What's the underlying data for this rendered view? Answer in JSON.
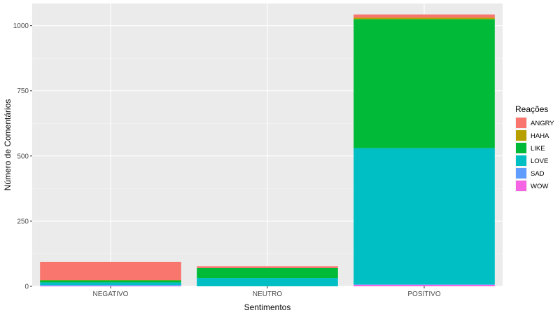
{
  "chart_data": {
    "type": "bar",
    "stacked": true,
    "title": "",
    "xlabel": "Sentimentos",
    "ylabel": "Número de Comentários",
    "categories": [
      "NEGATIVO",
      "NEUTRO",
      "POSITIVO"
    ],
    "ylim": [
      0,
      1085
    ],
    "yticks": [
      0,
      250,
      500,
      750,
      1000
    ],
    "grid": true,
    "legend": {
      "title": "Reações",
      "placement": "right"
    },
    "series": [
      {
        "name": "WOW",
        "color": "#F564E3",
        "values": [
          1,
          0,
          6
        ]
      },
      {
        "name": "SAD",
        "color": "#619CFF",
        "values": [
          4,
          0,
          1
        ]
      },
      {
        "name": "LOVE",
        "color": "#00BFC4",
        "values": [
          10,
          32,
          523
        ]
      },
      {
        "name": "LIKE",
        "color": "#00BA38",
        "values": [
          8,
          38,
          495
        ]
      },
      {
        "name": "HAHA",
        "color": "#B79F00",
        "values": [
          1,
          0,
          6
        ]
      },
      {
        "name": "ANGRY",
        "color": "#F8766D",
        "values": [
          70,
          7,
          12
        ]
      }
    ],
    "legend_order": [
      "ANGRY",
      "HAHA",
      "LIKE",
      "LOVE",
      "SAD",
      "WOW"
    ]
  }
}
